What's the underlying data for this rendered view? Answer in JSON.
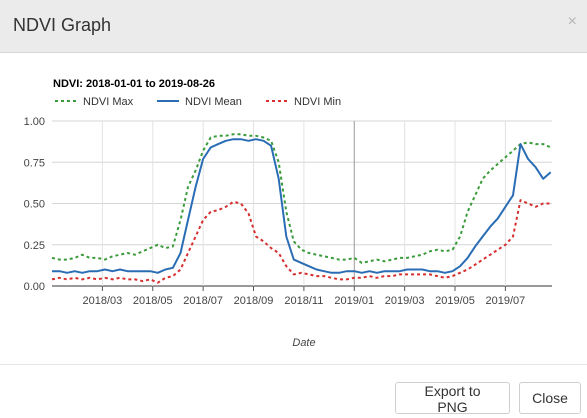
{
  "dialog": {
    "title": "NDVI Graph",
    "close_glyph": "×",
    "export_label": "Export to PNG",
    "close_label": "Close"
  },
  "chart_data": {
    "type": "line",
    "title": "NDVI: 2018-01-01 to 2019-08-26",
    "xlabel": "Date",
    "ylabel": "",
    "x_ticks": [
      "2018/03",
      "2018/05",
      "2018/07",
      "2018/09",
      "2018/11",
      "2019/01",
      "2019/03",
      "2019/05",
      "2019/07"
    ],
    "x_tick_months": [
      2,
      4,
      6,
      8,
      10,
      12,
      14,
      16,
      18
    ],
    "xlim_months": [
      0,
      19.85
    ],
    "y_ticks": [
      "0.00",
      "0.25",
      "0.50",
      "0.75",
      "1.00"
    ],
    "ylim": [
      0,
      1
    ],
    "grid": true,
    "legend": "top-left",
    "x_months": [
      0,
      0.3,
      0.6,
      0.9,
      1.2,
      1.5,
      1.8,
      2.1,
      2.4,
      2.7,
      3.0,
      3.3,
      3.6,
      3.9,
      4.2,
      4.5,
      4.8,
      5.1,
      5.4,
      5.7,
      6.0,
      6.3,
      6.6,
      6.9,
      7.2,
      7.5,
      7.8,
      8.1,
      8.4,
      8.7,
      9.0,
      9.3,
      9.6,
      9.9,
      10.2,
      10.5,
      10.8,
      11.1,
      11.4,
      11.7,
      12.0,
      12.3,
      12.6,
      12.9,
      13.2,
      13.5,
      13.8,
      14.1,
      14.4,
      14.7,
      15.0,
      15.3,
      15.6,
      15.9,
      16.2,
      16.5,
      16.8,
      17.1,
      17.4,
      17.7,
      18.0,
      18.3,
      18.6,
      18.9,
      19.2,
      19.5,
      19.8
    ],
    "series": [
      {
        "name": "NDVI Max",
        "color": "#3a9b3a",
        "dash": "dotted",
        "values": [
          0.17,
          0.16,
          0.16,
          0.17,
          0.19,
          0.17,
          0.17,
          0.16,
          0.18,
          0.19,
          0.2,
          0.19,
          0.21,
          0.23,
          0.25,
          0.23,
          0.24,
          0.4,
          0.6,
          0.7,
          0.82,
          0.9,
          0.91,
          0.91,
          0.92,
          0.92,
          0.91,
          0.91,
          0.9,
          0.88,
          0.75,
          0.45,
          0.27,
          0.22,
          0.2,
          0.19,
          0.18,
          0.17,
          0.16,
          0.16,
          0.17,
          0.14,
          0.15,
          0.16,
          0.15,
          0.16,
          0.17,
          0.17,
          0.18,
          0.19,
          0.21,
          0.22,
          0.21,
          0.22,
          0.3,
          0.45,
          0.55,
          0.65,
          0.7,
          0.74,
          0.78,
          0.82,
          0.86,
          0.87,
          0.86,
          0.86,
          0.84
        ]
      },
      {
        "name": "NDVI Mean",
        "color": "#2a6db5",
        "dash": "solid",
        "values": [
          0.09,
          0.09,
          0.08,
          0.09,
          0.08,
          0.09,
          0.09,
          0.1,
          0.09,
          0.1,
          0.09,
          0.09,
          0.09,
          0.09,
          0.08,
          0.1,
          0.11,
          0.2,
          0.4,
          0.6,
          0.77,
          0.84,
          0.86,
          0.88,
          0.89,
          0.89,
          0.88,
          0.89,
          0.88,
          0.85,
          0.65,
          0.3,
          0.16,
          0.14,
          0.12,
          0.1,
          0.09,
          0.08,
          0.08,
          0.09,
          0.09,
          0.08,
          0.09,
          0.08,
          0.09,
          0.09,
          0.09,
          0.1,
          0.1,
          0.1,
          0.09,
          0.09,
          0.08,
          0.09,
          0.12,
          0.17,
          0.24,
          0.3,
          0.36,
          0.41,
          0.48,
          0.55,
          0.86,
          0.77,
          0.72,
          0.65,
          0.69
        ]
      },
      {
        "name": "NDVI Min",
        "color": "#d62f2f",
        "dash": "dotted",
        "values": [
          0.04,
          0.05,
          0.04,
          0.05,
          0.04,
          0.05,
          0.04,
          0.05,
          0.04,
          0.05,
          0.04,
          0.04,
          0.03,
          0.04,
          0.02,
          0.05,
          0.06,
          0.1,
          0.2,
          0.3,
          0.4,
          0.45,
          0.46,
          0.48,
          0.51,
          0.5,
          0.44,
          0.3,
          0.27,
          0.23,
          0.2,
          0.12,
          0.07,
          0.08,
          0.07,
          0.06,
          0.06,
          0.05,
          0.04,
          0.04,
          0.05,
          0.05,
          0.06,
          0.05,
          0.06,
          0.06,
          0.07,
          0.07,
          0.07,
          0.07,
          0.07,
          0.06,
          0.05,
          0.06,
          0.08,
          0.1,
          0.13,
          0.16,
          0.19,
          0.22,
          0.25,
          0.3,
          0.52,
          0.5,
          0.48,
          0.5,
          0.5
        ]
      }
    ]
  }
}
